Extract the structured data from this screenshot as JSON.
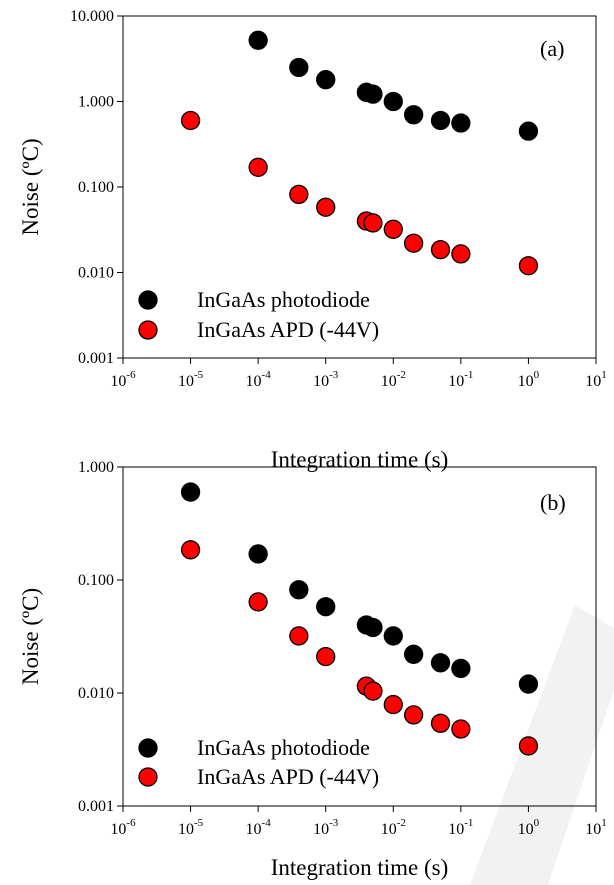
{
  "chart_data": [
    {
      "type": "scatter",
      "panel_label": "(a)",
      "xlabel": "Integration time (s)",
      "ylabel": "Noise (ºC)",
      "x_scale": "log",
      "y_scale": "log",
      "xlim": [
        1e-06,
        10
      ],
      "ylim": [
        0.001,
        10
      ],
      "x_tick_base": "10",
      "x_tick_exponents": [
        "-6",
        "-5",
        "-4",
        "-3",
        "-2",
        "-1",
        "0",
        "1"
      ],
      "y_tick_labels": [
        "0.001",
        "0.010",
        "0.100",
        "1.000",
        "10.000"
      ],
      "grid": false,
      "legend_position": "lower-left",
      "series": [
        {
          "name": "InGaAs photodiode",
          "color": "#000000",
          "x": [
            0.0001,
            0.0004,
            0.001,
            0.004,
            0.005,
            0.01,
            0.02,
            0.05,
            0.1,
            1
          ],
          "y": [
            5.2,
            2.5,
            1.8,
            1.28,
            1.22,
            1.0,
            0.7,
            0.6,
            0.56,
            0.45
          ]
        },
        {
          "name": "InGaAs APD (-44V)",
          "color": "#ff0000",
          "x": [
            1e-05,
            0.0001,
            0.0004,
            0.001,
            0.004,
            0.005,
            0.01,
            0.02,
            0.05,
            0.1,
            1
          ],
          "y": [
            0.6,
            0.17,
            0.082,
            0.058,
            0.04,
            0.038,
            0.032,
            0.022,
            0.0185,
            0.0165,
            0.012
          ]
        }
      ]
    },
    {
      "type": "scatter",
      "panel_label": "(b)",
      "xlabel": "Integration time (s)",
      "ylabel": "Noise (ºC)",
      "x_scale": "log",
      "y_scale": "log",
      "xlim": [
        1e-06,
        10
      ],
      "ylim": [
        0.001,
        1
      ],
      "x_tick_base": "10",
      "x_tick_exponents": [
        "-6",
        "-5",
        "-4",
        "-3",
        "-2",
        "-1",
        "0",
        "1"
      ],
      "y_tick_labels": [
        "0.001",
        "0.010",
        "0.100",
        "1.000"
      ],
      "grid": false,
      "legend_position": "lower-left",
      "series": [
        {
          "name": "InGaAs photodiode",
          "color": "#000000",
          "x": [
            1e-05,
            0.0001,
            0.0004,
            0.001,
            0.004,
            0.005,
            0.01,
            0.02,
            0.05,
            0.1,
            1
          ],
          "y": [
            0.6,
            0.17,
            0.082,
            0.058,
            0.04,
            0.038,
            0.032,
            0.022,
            0.0185,
            0.0165,
            0.012
          ]
        },
        {
          "name": "InGaAs APD (-44V)",
          "color": "#ff0000",
          "x": [
            1e-05,
            0.0001,
            0.0004,
            0.001,
            0.004,
            0.005,
            0.01,
            0.02,
            0.05,
            0.1,
            1
          ],
          "y": [
            0.185,
            0.064,
            0.032,
            0.021,
            0.0115,
            0.0104,
            0.0079,
            0.0064,
            0.0054,
            0.0048,
            0.0034
          ]
        }
      ]
    }
  ],
  "watermark_color": "#000000"
}
